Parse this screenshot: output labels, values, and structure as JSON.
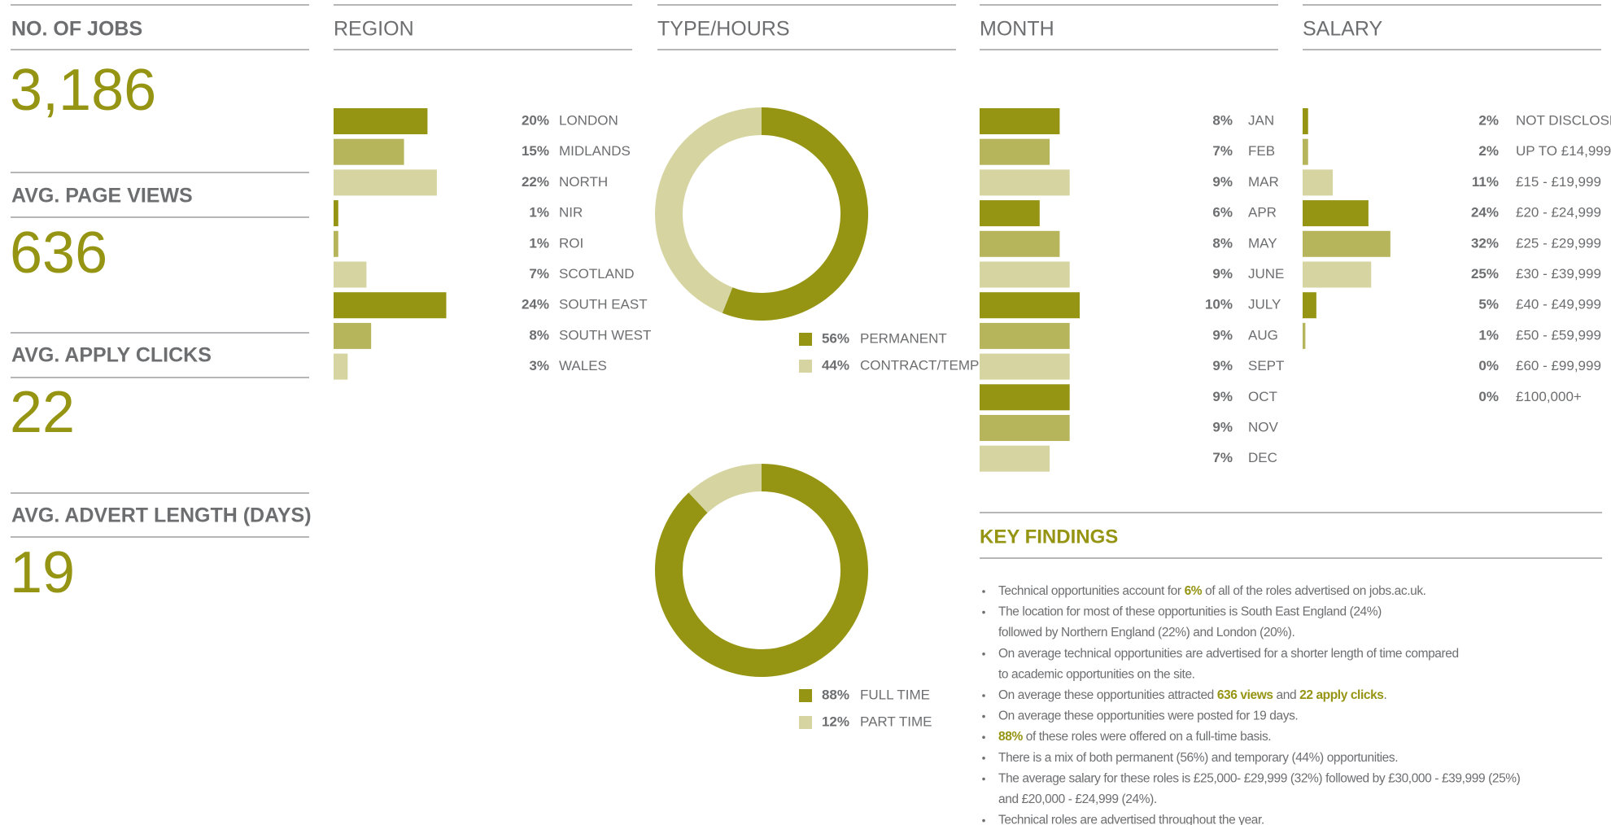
{
  "stats": [
    {
      "label": "NO. OF JOBS",
      "value": 3186,
      "value_label": "3,186"
    },
    {
      "label": "AVG. PAGE VIEWS",
      "value": 636
    },
    {
      "label": "AVG. APPLY CLICKS",
      "value": 22
    },
    {
      "label": "AVG. ADVERT LENGTH (DAYS)",
      "value": 19
    }
  ],
  "chart_data": [
    {
      "type": "bar",
      "title": "REGION",
      "categories": [
        "LONDON",
        "MIDLANDS",
        "NORTH",
        "NIR",
        "ROI",
        "SCOTLAND",
        "SOUTH EAST",
        "SOUTH WEST",
        "WALES"
      ],
      "values": [
        20,
        15,
        22,
        1,
        1,
        7,
        24,
        8,
        3
      ],
      "value_labels": [
        "20%",
        "15%",
        "22%",
        "1%",
        "1%",
        "7%",
        "24%",
        "8%",
        "3%"
      ],
      "colors": [
        "#959413",
        "#b7b55c",
        "#d6d5a2"
      ]
    },
    {
      "type": "donut",
      "title": "TYPE/HOURS",
      "categories": [
        "PERMANENT",
        "CONTRACT/TEMP"
      ],
      "values": [
        56,
        44
      ],
      "value_labels": [
        "56%",
        "44%"
      ],
      "colors": [
        "#959413",
        "#d6d5a2"
      ]
    },
    {
      "type": "donut",
      "categories": [
        "FULL TIME",
        "PART TIME"
      ],
      "values": [
        88,
        12
      ],
      "value_labels": [
        "88%",
        "12%"
      ],
      "colors": [
        "#959413",
        "#d6d5a2"
      ]
    },
    {
      "type": "bar",
      "title": "MONTH",
      "categories": [
        "JAN",
        "FEB",
        "MAR",
        "APR",
        "MAY",
        "JUNE",
        "JULY",
        "AUG",
        "SEPT",
        "OCT",
        "NOV",
        "DEC"
      ],
      "values": [
        8,
        7,
        9,
        6,
        8,
        9,
        10,
        9,
        9,
        9,
        9,
        7
      ],
      "value_labels": [
        "8%",
        "7%",
        "9%",
        "6%",
        "8%",
        "9%",
        "10%",
        "9%",
        "9%",
        "9%",
        "9%",
        "7%"
      ],
      "colors": [
        "#959413",
        "#b7b55c",
        "#d6d5a2"
      ]
    },
    {
      "type": "bar",
      "title": "SALARY",
      "categories": [
        "NOT DISCLOSED",
        "UP TO £14,999",
        "£15 - £19,999",
        "£20 - £24,999",
        "£25 - £29,999",
        "£30 - £39,999",
        "£40 - £49,999",
        "£50 - £59,999",
        "£60 - £99,999",
        "£100,000+"
      ],
      "values": [
        2,
        2,
        11,
        24,
        32,
        25,
        5,
        1,
        0,
        0
      ],
      "value_labels": [
        "2%",
        "2%",
        "11%",
        "24%",
        "32%",
        "25%",
        "5%",
        "1%",
        "0%",
        "0%"
      ],
      "colors": [
        "#959413",
        "#b7b55c",
        "#d6d5a2"
      ]
    }
  ],
  "key_findings": {
    "title": "KEY FINDINGS",
    "items": [
      [
        [
          {
            "text": "Technical opportunities account for "
          },
          {
            "text": "6%",
            "bold": true
          },
          {
            "text": " of all of the roles advertised on jobs.ac.uk."
          }
        ]
      ],
      [
        [
          {
            "text": "The location for most of these opportunities is South East England (24%)"
          }
        ],
        [
          {
            "text": "followed by Northern England (22%) and London (20%)."
          }
        ]
      ],
      [
        [
          {
            "text": "On average technical opportunities are advertised for a shorter length of time compared"
          }
        ],
        [
          {
            "text": "to academic opportunities on the site."
          }
        ]
      ],
      [
        [
          {
            "text": "On average these opportunities attracted "
          },
          {
            "text": "636 views",
            "bold": true
          },
          {
            "text": " and "
          },
          {
            "text": "22 apply clicks",
            "bold": true
          },
          {
            "text": "."
          }
        ]
      ],
      [
        [
          {
            "text": "On average these opportunities were posted for 19 days."
          }
        ]
      ],
      [
        [
          {
            "text": "88%",
            "bold": true
          },
          {
            "text": " of these roles were offered on a full-time basis."
          }
        ]
      ],
      [
        [
          {
            "text": "There is a mix of both permanent (56%) and temporary (44%) opportunities."
          }
        ]
      ],
      [
        [
          {
            "text": "The average salary for these roles is £25,000- £29,999 (32%) followed by £30,000 - £39,999 (25%)"
          }
        ],
        [
          {
            "text": "and £20,000 - £24,999 (24%)."
          }
        ]
      ],
      [
        [
          {
            "text": "Technical roles are advertised throughout the year."
          }
        ]
      ]
    ]
  }
}
